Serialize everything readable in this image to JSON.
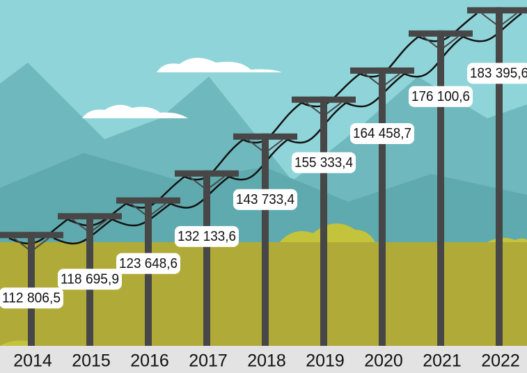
{
  "chart_data": {
    "type": "bar",
    "categories": [
      "2014",
      "2015",
      "2016",
      "2017",
      "2018",
      "2019",
      "2020",
      "2021",
      "2022"
    ],
    "values": [
      112806.5,
      118695.9,
      123648.6,
      132133.6,
      143733.4,
      155333.4,
      164458.7,
      176100.6,
      183395.6
    ],
    "value_labels": [
      "112 806,5",
      "118 695,9",
      "123 648,6",
      "132 133,6",
      "143 733,4",
      "155 333,4",
      "164 458,7",
      "176 100,6",
      "183 395,6"
    ],
    "color": "#474747",
    "ylim": [
      77000,
      185000
    ]
  }
}
